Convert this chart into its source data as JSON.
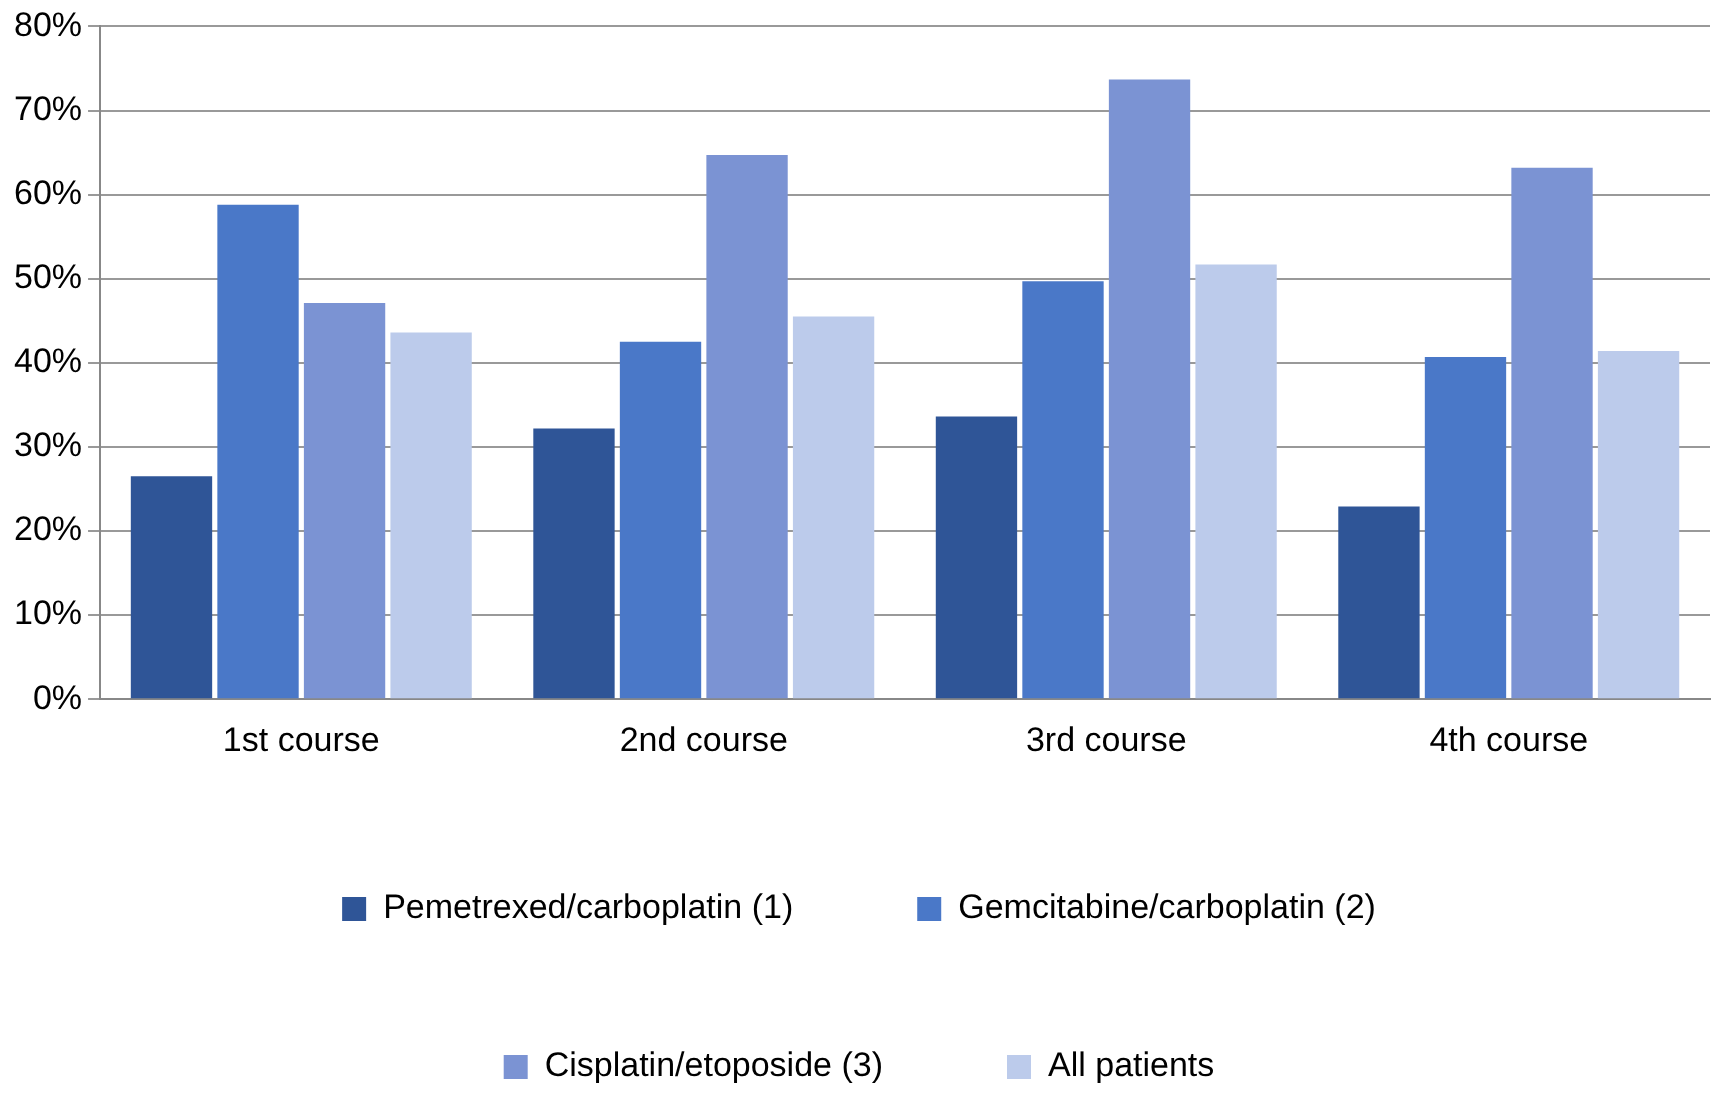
{
  "chart_data": {
    "type": "bar",
    "categories": [
      "1st course",
      "2nd course",
      "3rd course",
      "4th course"
    ],
    "series": [
      {
        "name": "Pemetrexed/carboplatin (1)",
        "color": "#2f5597",
        "values": [
          26.5,
          32.2,
          33.6,
          22.9
        ]
      },
      {
        "name": "Gemcitabine/carboplatin (2)",
        "color": "#4a78c8",
        "values": [
          58.8,
          42.5,
          49.7,
          40.7
        ]
      },
      {
        "name": "Cisplatin/etoposide (3)",
        "color": "#7b93d3",
        "values": [
          47.1,
          64.7,
          73.7,
          63.2
        ]
      },
      {
        "name": "All patients",
        "color": "#bccbeb",
        "values": [
          43.6,
          45.5,
          51.7,
          41.4
        ]
      }
    ],
    "ylim": [
      0,
      80
    ],
    "yticks": [
      {
        "value": 0,
        "label": "0%"
      },
      {
        "value": 10,
        "label": "10%"
      },
      {
        "value": 20,
        "label": "20%"
      },
      {
        "value": 30,
        "label": "30%"
      },
      {
        "value": 40,
        "label": "40%"
      },
      {
        "value": 50,
        "label": "50%"
      },
      {
        "value": 60,
        "label": "60%"
      },
      {
        "value": 70,
        "label": "70%"
      },
      {
        "value": 80,
        "label": "80%"
      }
    ],
    "grid": "y",
    "legend": "bottom"
  }
}
